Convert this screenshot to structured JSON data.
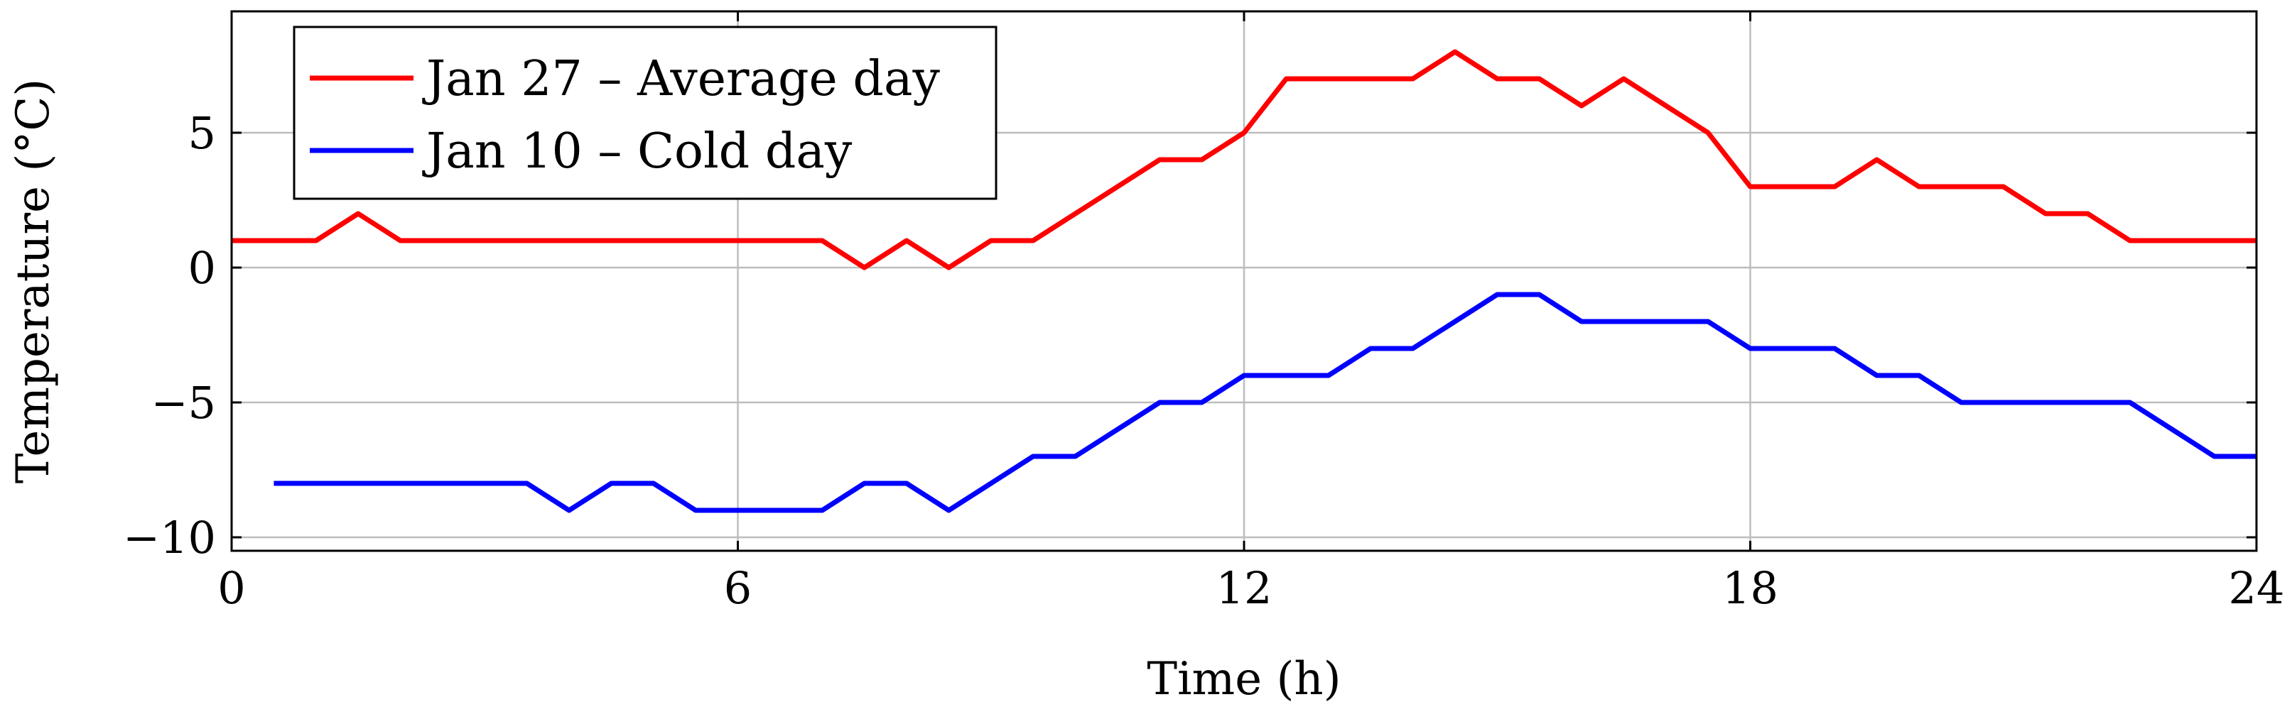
{
  "chart_data": {
    "type": "line",
    "title": "",
    "xlabel": "Time (h)",
    "ylabel": "Temperature (°C)",
    "xlim": [
      0,
      24
    ],
    "ylim": [
      -10.5,
      9.5
    ],
    "xticks": [
      0,
      6,
      12,
      18,
      24
    ],
    "xtick_labels": [
      "0",
      "6",
      "12",
      "18",
      "24"
    ],
    "yticks": [
      -10,
      -5,
      0,
      5
    ],
    "ytick_labels": [
      "−10",
      "−5",
      "0",
      "5"
    ],
    "grid": true,
    "legend_position": "top-left",
    "series": [
      {
        "name": "Jan 27 – Average day",
        "color": "#ff0000",
        "x": [
          0,
          0.5,
          1,
          1.5,
          2,
          2.5,
          3,
          3.5,
          4,
          4.5,
          5,
          5.5,
          6,
          6.5,
          7,
          7.5,
          8,
          8.5,
          9,
          9.5,
          10,
          10.5,
          11,
          11.5,
          12,
          12.5,
          13,
          13.5,
          14,
          14.5,
          15,
          15.5,
          16,
          16.5,
          17,
          17.5,
          18,
          18.5,
          19,
          19.5,
          20,
          20.5,
          21,
          21.5,
          22,
          22.5,
          23,
          23.5,
          24
        ],
        "y": [
          1,
          1,
          1,
          2,
          1,
          1,
          1,
          1,
          1,
          1,
          1,
          1,
          1,
          1,
          1,
          0,
          1,
          0,
          1,
          1,
          2,
          3,
          4,
          4,
          5,
          7,
          7,
          7,
          7,
          8,
          7,
          7,
          6,
          7,
          6,
          5,
          3,
          3,
          3,
          4,
          3,
          3,
          3,
          2,
          2,
          1,
          1,
          1,
          1
        ]
      },
      {
        "name": "Jan 10 – Cold day",
        "color": "#0000ff",
        "x": [
          0.5,
          1,
          1.5,
          2,
          2.5,
          3,
          3.5,
          4,
          4.5,
          5,
          5.5,
          6,
          6.5,
          7,
          7.5,
          8,
          8.5,
          9,
          9.5,
          10,
          10.5,
          11,
          11.5,
          12,
          12.5,
          13,
          13.5,
          14,
          14.5,
          15,
          15.5,
          16,
          16.5,
          17,
          17.5,
          18,
          18.5,
          19,
          19.5,
          20,
          20.5,
          21,
          21.5,
          22,
          22.5,
          23,
          23.5,
          24
        ],
        "y": [
          -8,
          -8,
          -8,
          -8,
          -8,
          -8,
          -8,
          -9,
          -8,
          -8,
          -9,
          -9,
          -9,
          -9,
          -8,
          -8,
          -9,
          -8,
          -7,
          -7,
          -6,
          -5,
          -5,
          -4,
          -4,
          -4,
          -3,
          -3,
          -2,
          -1,
          -1,
          -2,
          -2,
          -2,
          -2,
          -3,
          -3,
          -3,
          -4,
          -4,
          -5,
          -5,
          -5,
          -5,
          -5,
          -6,
          -7,
          -7
        ]
      }
    ]
  }
}
